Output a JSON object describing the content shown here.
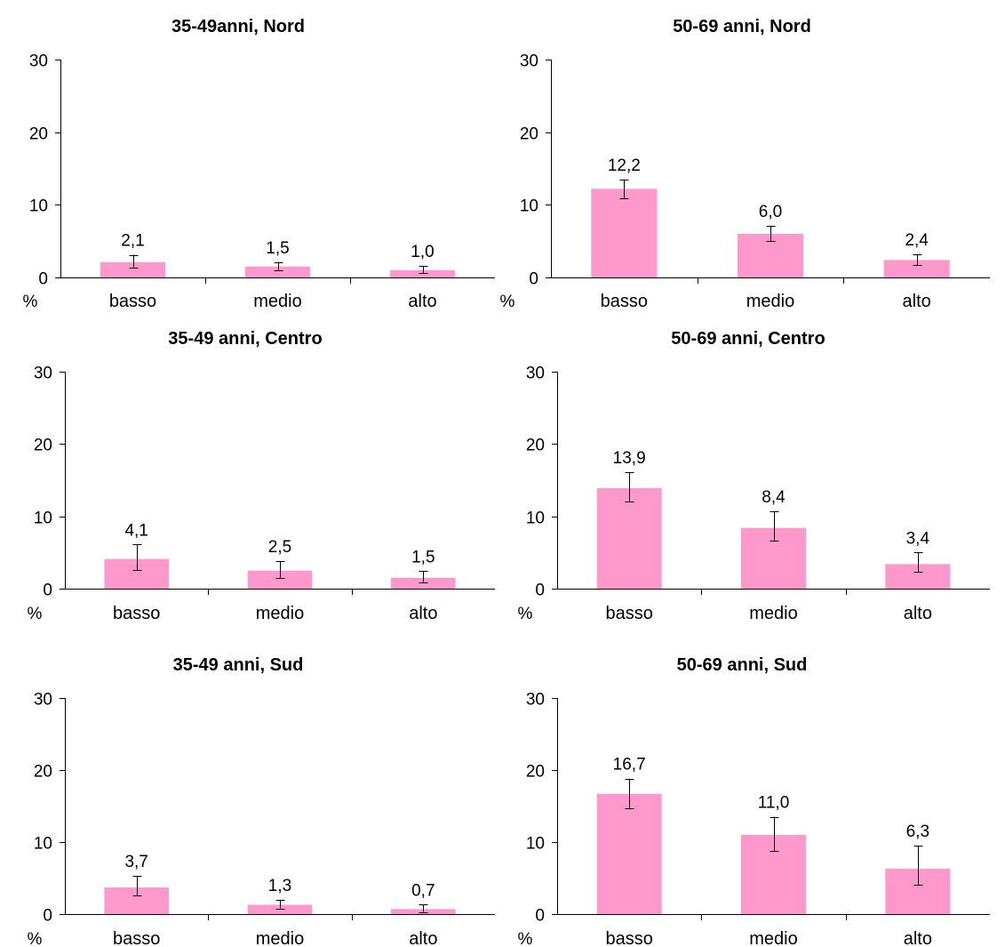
{
  "chart_data": [
    {
      "type": "bar",
      "title": "35-49anni, Nord",
      "ylabel": "%",
      "ylim": [
        0,
        30
      ],
      "yticks": [
        0,
        10,
        20,
        30
      ],
      "categories": [
        "basso",
        "medio",
        "alto"
      ],
      "values": [
        2.1,
        1.5,
        1.0
      ],
      "value_labels": [
        "2,1",
        "1,5",
        "1,0"
      ],
      "error_low": [
        1.4,
        1.0,
        0.6
      ],
      "error_high": [
        3.1,
        2.1,
        1.6
      ],
      "bar_color": "#FF99CC"
    },
    {
      "type": "bar",
      "title": "50-69 anni, Nord",
      "ylabel": "%",
      "ylim": [
        0,
        30
      ],
      "yticks": [
        0,
        10,
        20,
        30
      ],
      "categories": [
        "basso",
        "medio",
        "alto"
      ],
      "values": [
        12.2,
        6.0,
        2.4
      ],
      "value_labels": [
        "12,2",
        "6,0",
        "2,4"
      ],
      "error_low": [
        10.9,
        5.0,
        1.7
      ],
      "error_high": [
        13.5,
        7.1,
        3.2
      ],
      "bar_color": "#FF99CC"
    },
    {
      "type": "bar",
      "title": "35-49 anni, Centro",
      "ylabel": "%",
      "ylim": [
        0,
        30
      ],
      "yticks": [
        0,
        10,
        20,
        30
      ],
      "categories": [
        "basso",
        "medio",
        "alto"
      ],
      "values": [
        4.1,
        2.5,
        1.5
      ],
      "value_labels": [
        "4,1",
        "2,5",
        "1,5"
      ],
      "error_low": [
        2.6,
        1.5,
        0.9
      ],
      "error_high": [
        6.1,
        3.8,
        2.4
      ],
      "bar_color": "#FF99CC"
    },
    {
      "type": "bar",
      "title": "50-69 anni, Centro",
      "ylabel": "%",
      "ylim": [
        0,
        30
      ],
      "yticks": [
        0,
        10,
        20,
        30
      ],
      "categories": [
        "basso",
        "medio",
        "alto"
      ],
      "values": [
        13.9,
        8.4,
        3.4
      ],
      "value_labels": [
        "13,9",
        "8,4",
        "3,4"
      ],
      "error_low": [
        12.0,
        6.6,
        2.3
      ],
      "error_high": [
        16.1,
        10.7,
        5.0
      ],
      "bar_color": "#FF99CC"
    },
    {
      "type": "bar",
      "title": "35-49 anni, Sud",
      "ylabel": "%",
      "ylim": [
        0,
        30
      ],
      "yticks": [
        0,
        10,
        20,
        30
      ],
      "categories": [
        "basso",
        "medio",
        "alto"
      ],
      "values": [
        3.7,
        1.3,
        0.7
      ],
      "value_labels": [
        "3,7",
        "1,3",
        "0,7"
      ],
      "error_low": [
        2.6,
        0.8,
        0.3
      ],
      "error_high": [
        5.3,
        2.0,
        1.3
      ],
      "bar_color": "#FF99CC"
    },
    {
      "type": "bar",
      "title": "50-69 anni, Sud",
      "ylabel": "%",
      "ylim": [
        0,
        30
      ],
      "yticks": [
        0,
        10,
        20,
        30
      ],
      "categories": [
        "basso",
        "medio",
        "alto"
      ],
      "values": [
        16.7,
        11.0,
        6.3
      ],
      "value_labels": [
        "16,7",
        "11,0",
        "6,3"
      ],
      "error_low": [
        14.7,
        8.8,
        4.1
      ],
      "error_high": [
        18.8,
        13.5,
        9.5
      ],
      "bar_color": "#FF99CC"
    }
  ]
}
